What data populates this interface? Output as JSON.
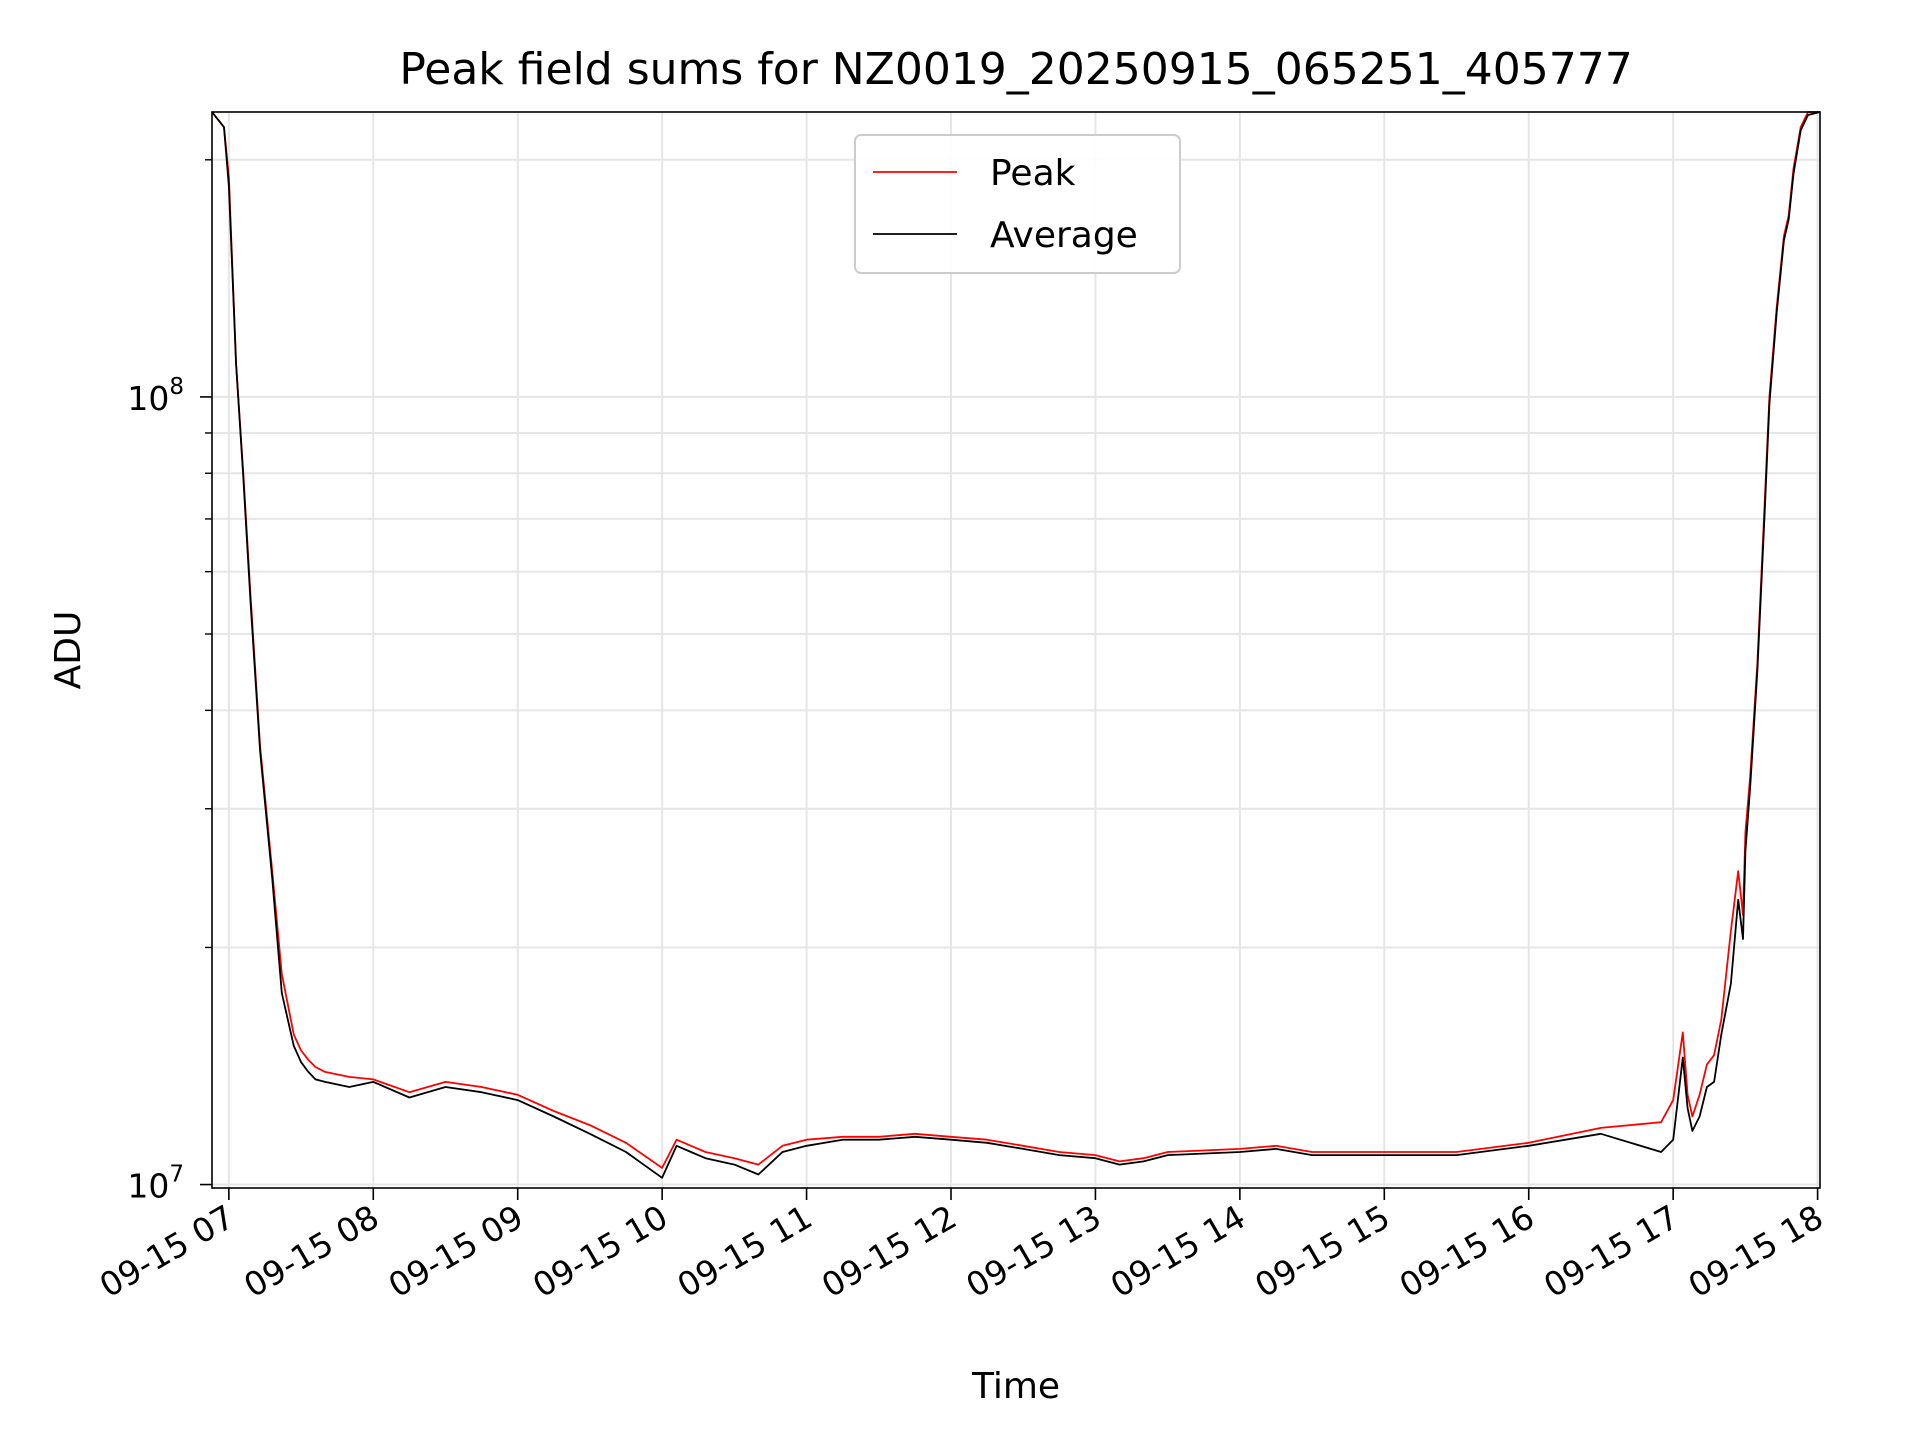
{
  "chart_data": {
    "type": "line",
    "title": "Peak field sums for NZ0019_20250915_065251_405777",
    "xlabel": "Time",
    "ylabel": "ADU",
    "yscale": "log",
    "xlim": [
      "2025-09-15 06:53",
      "2025-09-15 18:01"
    ],
    "ylim": [
      9900000.0,
      230000000.0
    ],
    "grid": true,
    "legend_position": "top-center",
    "x_tick_labels": [
      "09-15 07",
      "09-15 08",
      "09-15 09",
      "09-15 10",
      "09-15 11",
      "09-15 12",
      "09-15 13",
      "09-15 14",
      "09-15 15",
      "09-15 16",
      "09-15 17",
      "09-15 18"
    ],
    "x_ticks": [
      "2025-09-15 07:00",
      "2025-09-15 08:00",
      "2025-09-15 09:00",
      "2025-09-15 10:00",
      "2025-09-15 11:00",
      "2025-09-15 12:00",
      "2025-09-15 13:00",
      "2025-09-15 14:00",
      "2025-09-15 15:00",
      "2025-09-15 16:00",
      "2025-09-15 17:00",
      "2025-09-15 18:00"
    ],
    "y_major_ticks": [
      {
        "value": 10000000.0,
        "base": "10",
        "exp": "7"
      },
      {
        "value": 100000000.0,
        "base": "10",
        "exp": "8"
      }
    ],
    "y_minor_ticks": [
      20000000.0,
      30000000.0,
      40000000.0,
      50000000.0,
      60000000.0,
      70000000.0,
      80000000.0,
      90000000.0,
      200000000.0
    ],
    "series": [
      {
        "name": "Peak",
        "color": "#ff0000",
        "x": [
          "2025-09-15 06:53",
          "2025-09-15 06:58",
          "2025-09-15 07:00",
          "2025-09-15 07:03",
          "2025-09-15 07:06",
          "2025-09-15 07:09",
          "2025-09-15 07:13",
          "2025-09-15 07:18",
          "2025-09-15 07:22",
          "2025-09-15 07:27",
          "2025-09-15 07:30",
          "2025-09-15 07:33",
          "2025-09-15 07:36",
          "2025-09-15 07:40",
          "2025-09-15 07:50",
          "2025-09-15 08:00",
          "2025-09-15 08:15",
          "2025-09-15 08:30",
          "2025-09-15 08:45",
          "2025-09-15 09:00",
          "2025-09-15 09:15",
          "2025-09-15 09:30",
          "2025-09-15 09:45",
          "2025-09-15 10:00",
          "2025-09-15 10:06",
          "2025-09-15 10:12",
          "2025-09-15 10:18",
          "2025-09-15 10:30",
          "2025-09-15 10:40",
          "2025-09-15 10:50",
          "2025-09-15 11:00",
          "2025-09-15 11:15",
          "2025-09-15 11:30",
          "2025-09-15 11:45",
          "2025-09-15 12:00",
          "2025-09-15 12:15",
          "2025-09-15 12:30",
          "2025-09-15 12:45",
          "2025-09-15 13:00",
          "2025-09-15 13:10",
          "2025-09-15 13:20",
          "2025-09-15 13:30",
          "2025-09-15 14:00",
          "2025-09-15 14:15",
          "2025-09-15 14:30",
          "2025-09-15 15:00",
          "2025-09-15 15:30",
          "2025-09-15 16:00",
          "2025-09-15 16:30",
          "2025-09-15 16:55",
          "2025-09-15 17:00",
          "2025-09-15 17:04",
          "2025-09-15 17:06",
          "2025-09-15 17:08",
          "2025-09-15 17:11",
          "2025-09-15 17:14",
          "2025-09-15 17:17",
          "2025-09-15 17:20",
          "2025-09-15 17:24",
          "2025-09-15 17:27",
          "2025-09-15 17:29",
          "2025-09-15 17:30",
          "2025-09-15 17:32",
          "2025-09-15 17:35",
          "2025-09-15 17:38",
          "2025-09-15 17:40",
          "2025-09-15 17:43",
          "2025-09-15 17:46",
          "2025-09-15 17:48",
          "2025-09-15 17:50",
          "2025-09-15 17:53",
          "2025-09-15 17:56",
          "2025-09-15 18:01"
        ],
        "y": [
          230000000.0,
          220000000.0,
          190000000.0,
          110000000.0,
          80000000.0,
          56000000.0,
          36000000.0,
          25000000.0,
          18500000.0,
          15500000.0,
          14800000.0,
          14400000.0,
          14100000.0,
          13900000.0,
          13700000.0,
          13600000.0,
          13100000.0,
          13500000.0,
          13300000.0,
          13000000.0,
          12400000.0,
          11900000.0,
          11300000.0,
          10500000.0,
          11400000.0,
          11200000.0,
          11000000.0,
          10800000.0,
          10600000.0,
          11200000.0,
          11400000.0,
          11500000.0,
          11500000.0,
          11600000.0,
          11500000.0,
          11400000.0,
          11200000.0,
          11000000.0,
          10900000.0,
          10700000.0,
          10800000.0,
          11000000.0,
          11100000.0,
          11200000.0,
          11000000.0,
          11000000.0,
          11000000.0,
          11300000.0,
          11800000.0,
          12000000.0,
          12800000.0,
          15600000.0,
          13000000.0,
          12200000.0,
          13000000.0,
          14200000.0,
          14600000.0,
          16200000.0,
          21000000.0,
          25000000.0,
          22000000.0,
          28000000.0,
          33000000.0,
          46000000.0,
          73000000.0,
          100000000.0,
          130000000.0,
          160000000.0,
          170000000.0,
          195000000.0,
          220000000.0,
          230000000.0,
          232000000.0
        ]
      },
      {
        "name": "Average",
        "color": "#000000",
        "x": [
          "2025-09-15 06:53",
          "2025-09-15 06:58",
          "2025-09-15 07:00",
          "2025-09-15 07:03",
          "2025-09-15 07:06",
          "2025-09-15 07:09",
          "2025-09-15 07:13",
          "2025-09-15 07:18",
          "2025-09-15 07:22",
          "2025-09-15 07:27",
          "2025-09-15 07:30",
          "2025-09-15 07:33",
          "2025-09-15 07:36",
          "2025-09-15 07:40",
          "2025-09-15 07:50",
          "2025-09-15 08:00",
          "2025-09-15 08:15",
          "2025-09-15 08:30",
          "2025-09-15 08:45",
          "2025-09-15 09:00",
          "2025-09-15 09:15",
          "2025-09-15 09:30",
          "2025-09-15 09:45",
          "2025-09-15 10:00",
          "2025-09-15 10:06",
          "2025-09-15 10:12",
          "2025-09-15 10:18",
          "2025-09-15 10:30",
          "2025-09-15 10:40",
          "2025-09-15 10:50",
          "2025-09-15 11:00",
          "2025-09-15 11:15",
          "2025-09-15 11:30",
          "2025-09-15 11:45",
          "2025-09-15 12:00",
          "2025-09-15 12:15",
          "2025-09-15 12:30",
          "2025-09-15 12:45",
          "2025-09-15 13:00",
          "2025-09-15 13:10",
          "2025-09-15 13:20",
          "2025-09-15 13:30",
          "2025-09-15 14:00",
          "2025-09-15 14:15",
          "2025-09-15 14:30",
          "2025-09-15 15:00",
          "2025-09-15 15:30",
          "2025-09-15 16:00",
          "2025-09-15 16:30",
          "2025-09-15 16:55",
          "2025-09-15 17:00",
          "2025-09-15 17:04",
          "2025-09-15 17:06",
          "2025-09-15 17:08",
          "2025-09-15 17:11",
          "2025-09-15 17:14",
          "2025-09-15 17:17",
          "2025-09-15 17:20",
          "2025-09-15 17:24",
          "2025-09-15 17:27",
          "2025-09-15 17:29",
          "2025-09-15 17:30",
          "2025-09-15 17:32",
          "2025-09-15 17:35",
          "2025-09-15 17:38",
          "2025-09-15 17:40",
          "2025-09-15 17:43",
          "2025-09-15 17:46",
          "2025-09-15 17:48",
          "2025-09-15 17:50",
          "2025-09-15 17:53",
          "2025-09-15 17:56",
          "2025-09-15 18:01"
        ],
        "y": [
          230000000.0,
          220000000.0,
          185000000.0,
          110000000.0,
          79000000.0,
          55000000.0,
          35500000.0,
          24500000.0,
          17500000.0,
          15000000.0,
          14300000.0,
          13900000.0,
          13600000.0,
          13500000.0,
          13300000.0,
          13500000.0,
          12900000.0,
          13300000.0,
          13100000.0,
          12800000.0,
          12200000.0,
          11600000.0,
          11000000.0,
          10200000.0,
          11200000.0,
          11000000.0,
          10800000.0,
          10600000.0,
          10300000.0,
          11000000.0,
          11200000.0,
          11400000.0,
          11400000.0,
          11500000.0,
          11400000.0,
          11300000.0,
          11100000.0,
          10900000.0,
          10800000.0,
          10600000.0,
          10700000.0,
          10900000.0,
          11000000.0,
          11100000.0,
          10900000.0,
          10900000.0,
          10900000.0,
          11200000.0,
          11600000.0,
          11000000.0,
          11400000.0,
          14500000.0,
          12500000.0,
          11700000.0,
          12200000.0,
          13300000.0,
          13500000.0,
          15500000.0,
          18000000.0,
          23000000.0,
          20500000.0,
          26500000.0,
          32000000.0,
          45000000.0,
          71000000.0,
          98000000.0,
          128000000.0,
          158000000.0,
          168000000.0,
          192000000.0,
          218000000.0,
          228000000.0,
          232000000.0
        ]
      }
    ]
  }
}
